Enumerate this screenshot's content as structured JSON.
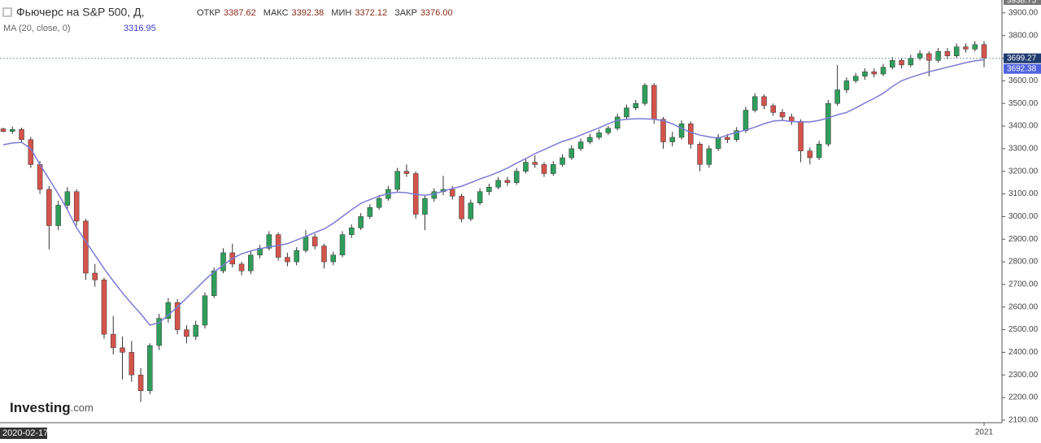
{
  "chart_data": {
    "type": "candlestick",
    "title": "Фьючерс на S&P 500, Д,",
    "crosshair": {
      "date": "2020-02-17",
      "labels": [
        "ОТКР",
        "МАКС",
        "МИН",
        "ЗАКР"
      ],
      "values": [
        "3387.62",
        "3392.38",
        "3372.12",
        "3376.00"
      ]
    },
    "watermark": [
      "Investing",
      ".com"
    ],
    "up_color": "#2f9e5c",
    "down_color": "#d4544c",
    "candles": {
      "open": [
        3387.62,
        3376,
        3385,
        3340,
        3230,
        3120,
        2960,
        3050,
        3110,
        2980,
        2750,
        2720,
        2480,
        2420,
        2400,
        2300,
        2230,
        2430,
        2550,
        2620,
        2500,
        2470,
        2520,
        2650,
        2760,
        2840,
        2790,
        2760,
        2830,
        2860,
        2920,
        2820,
        2800,
        2850,
        2910,
        2870,
        2800,
        2830,
        2920,
        2950,
        3000,
        3040,
        3080,
        3120,
        3200,
        3190,
        3010,
        3080,
        3110,
        3120,
        3090,
        2990,
        3060,
        3110,
        3130,
        3160,
        3150,
        3200,
        3240,
        3230,
        3190,
        3230,
        3260,
        3300,
        3330,
        3350,
        3370,
        3390,
        3440,
        3480,
        3500,
        3580,
        3430,
        3330,
        3350,
        3410,
        3320,
        3230,
        3300,
        3350,
        3340,
        3380,
        3470,
        3530,
        3490,
        3460,
        3440,
        3420,
        3290,
        3260,
        3320,
        3500,
        3560,
        3600,
        3620,
        3640,
        3630,
        3660,
        3690,
        3670,
        3700,
        3720,
        3690,
        3730,
        3710,
        3750,
        3740,
        3760
      ],
      "high": [
        3392.38,
        3398,
        3393,
        3352,
        3245,
        3135,
        3070,
        3130,
        3120,
        2990,
        2790,
        2730,
        2560,
        2470,
        2450,
        2330,
        2440,
        2570,
        2640,
        2635,
        2520,
        2540,
        2665,
        2775,
        2860,
        2880,
        2800,
        2850,
        2875,
        2935,
        2930,
        2840,
        2865,
        2940,
        2925,
        2880,
        2845,
        2935,
        2965,
        3015,
        3055,
        3095,
        3135,
        3215,
        3230,
        3200,
        3095,
        3125,
        3180,
        3135,
        3100,
        3075,
        3125,
        3145,
        3175,
        3175,
        3215,
        3255,
        3270,
        3240,
        3245,
        3275,
        3315,
        3345,
        3365,
        3385,
        3400,
        3455,
        3495,
        3515,
        3590,
        3590,
        3440,
        3375,
        3425,
        3420,
        3330,
        3315,
        3365,
        3365,
        3395,
        3485,
        3545,
        3540,
        3500,
        3475,
        3455,
        3430,
        3305,
        3335,
        3515,
        3670,
        3615,
        3635,
        3655,
        3655,
        3675,
        3705,
        3700,
        3715,
        3735,
        3730,
        3745,
        3745,
        3765,
        3765,
        3775,
        3775
      ],
      "low": [
        3372.12,
        3365,
        3328,
        3215,
        3100,
        2855,
        2940,
        3030,
        2960,
        2720,
        2690,
        2460,
        2390,
        2280,
        2270,
        2180,
        2215,
        2410,
        2530,
        2480,
        2440,
        2455,
        2505,
        2640,
        2750,
        2775,
        2740,
        2745,
        2815,
        2850,
        2805,
        2780,
        2785,
        2840,
        2855,
        2770,
        2785,
        2820,
        2905,
        2940,
        2990,
        3030,
        3070,
        3110,
        3175,
        2990,
        2940,
        3065,
        3095,
        3075,
        2975,
        2980,
        3050,
        3095,
        3120,
        3135,
        3140,
        3190,
        3215,
        3175,
        3180,
        3220,
        3250,
        3290,
        3320,
        3340,
        3360,
        3380,
        3430,
        3470,
        3490,
        3410,
        3300,
        3310,
        3340,
        3300,
        3200,
        3215,
        3290,
        3325,
        3330,
        3370,
        3460,
        3475,
        3445,
        3425,
        3405,
        3240,
        3230,
        3250,
        3310,
        3490,
        3545,
        3590,
        3605,
        3615,
        3620,
        3650,
        3655,
        3660,
        3690,
        3620,
        3680,
        3695,
        3700,
        3725,
        3730,
        3660
      ],
      "close": [
        3376,
        3385,
        3340,
        3230,
        3120,
        2960,
        3050,
        3110,
        2980,
        2750,
        2720,
        2480,
        2420,
        2400,
        2300,
        2230,
        2430,
        2550,
        2620,
        2500,
        2470,
        2520,
        2650,
        2760,
        2840,
        2790,
        2760,
        2830,
        2860,
        2920,
        2820,
        2800,
        2850,
        2910,
        2870,
        2800,
        2830,
        2920,
        2950,
        3000,
        3040,
        3080,
        3120,
        3200,
        3190,
        3010,
        3080,
        3110,
        3120,
        3090,
        2990,
        3060,
        3110,
        3130,
        3160,
        3150,
        3200,
        3240,
        3230,
        3190,
        3230,
        3260,
        3300,
        3330,
        3350,
        3370,
        3390,
        3440,
        3480,
        3500,
        3580,
        3430,
        3330,
        3350,
        3410,
        3320,
        3230,
        3300,
        3350,
        3340,
        3380,
        3470,
        3530,
        3490,
        3460,
        3440,
        3420,
        3290,
        3260,
        3320,
        3500,
        3560,
        3600,
        3620,
        3640,
        3630,
        3660,
        3690,
        3670,
        3700,
        3720,
        3690,
        3730,
        3710,
        3750,
        3740,
        3760,
        3699.27
      ]
    },
    "overlays": [
      {
        "name": "MA (20, close, 0)",
        "color": "#7b7bd6",
        "values": [
          3316.95,
          3325,
          3328,
          3300,
          3230,
          3166,
          3100,
          3030,
          2950,
          2890,
          2830,
          2770,
          2715,
          2663,
          2615,
          2570,
          2520,
          2530,
          2565,
          2600,
          2640,
          2680,
          2720,
          2755,
          2785,
          2815,
          2835,
          2848,
          2858,
          2866,
          2872,
          2880,
          2896,
          2912,
          2930,
          2945,
          2970,
          3000,
          3030,
          3058,
          3075,
          3090,
          3102,
          3108,
          3105,
          3098,
          3094,
          3100,
          3112,
          3124,
          3134,
          3150,
          3166,
          3180,
          3196,
          3214,
          3236,
          3256,
          3278,
          3296,
          3314,
          3332,
          3344,
          3360,
          3376,
          3392,
          3410,
          3425,
          3430,
          3432,
          3432,
          3430,
          3424,
          3410,
          3390,
          3372,
          3360,
          3352,
          3346,
          3360,
          3372,
          3382,
          3395,
          3410,
          3422,
          3425,
          3420,
          3418,
          3418,
          3425,
          3436,
          3450,
          3460,
          3480,
          3502,
          3522,
          3545,
          3575,
          3600,
          3615,
          3628,
          3640,
          3650,
          3660,
          3670,
          3680,
          3688,
          3692.38
        ]
      }
    ],
    "ylim": [
      2089,
      3957
    ],
    "yticks": [
      {
        "value": 2100,
        "label": "2100.00"
      },
      {
        "value": 2200,
        "label": "2200.00"
      },
      {
        "value": 2300,
        "label": "2300.00"
      },
      {
        "value": 2400,
        "label": "2400.00"
      },
      {
        "value": 2500,
        "label": "2500.00"
      },
      {
        "value": 2600,
        "label": "2600.00"
      },
      {
        "value": 2700,
        "label": "2700.00"
      },
      {
        "value": 2800,
        "label": "2800.00"
      },
      {
        "value": 2900,
        "label": "2900.00"
      },
      {
        "value": 3000,
        "label": "3000.00"
      },
      {
        "value": 3100,
        "label": "3100.00"
      },
      {
        "value": 3200,
        "label": "3200.00"
      },
      {
        "value": 3300,
        "label": "3300.00"
      },
      {
        "value": 3400,
        "label": "3400.00"
      },
      {
        "value": 3500,
        "label": "3500.00"
      },
      {
        "value": 3600,
        "label": "3600.00"
      },
      {
        "value": 3700,
        "label": "3700.00"
      },
      {
        "value": 3800,
        "label": "3800.00"
      },
      {
        "value": 3900,
        "label": "3900.00"
      }
    ],
    "top_label": "3938.75",
    "xticks": [
      {
        "value": 107,
        "label": "2021"
      }
    ]
  }
}
